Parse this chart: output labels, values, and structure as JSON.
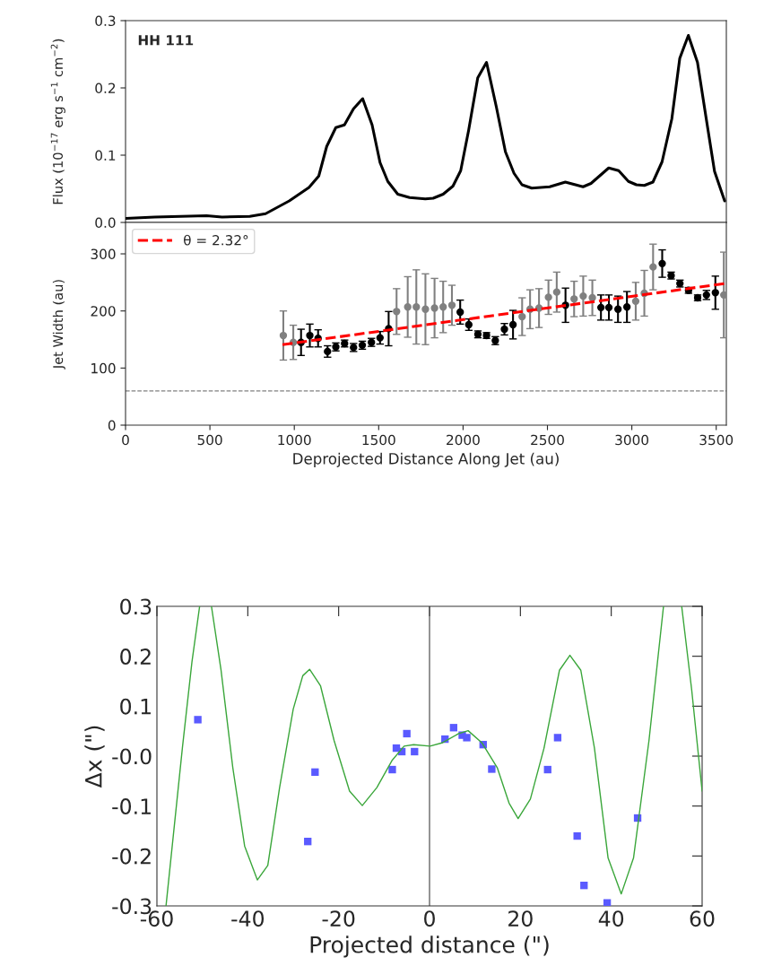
{
  "chart_data": [
    {
      "type": "line",
      "xlim": [
        0,
        3560
      ],
      "ylim": [
        0.0,
        0.3
      ],
      "yticks": [
        {
          "value": 0,
          "label": "0.0"
        },
        0.1,
        0.2,
        0.3
      ],
      "tick_labels": "y",
      "grid": false,
      "legend": false,
      "ylabel": "Flux (10$^{−17}$ erg s$^{−1}$ cm$^{−2}$)",
      "annotations": [
        "HH 111"
      ],
      "series": [
        {
          "color": "#000000",
          "marker": "none",
          "line_style": "solid",
          "x": [
            0,
            173,
            480,
            572,
            736,
            830,
            970,
            1087,
            1145,
            1192,
            1246,
            1297,
            1351,
            1405,
            1461,
            1508,
            1554,
            1613,
            1683,
            1776,
            1823,
            1882,
            1940,
            1986,
            2033,
            2087,
            2139,
            2197,
            2251,
            2302,
            2349,
            2407,
            2513,
            2606,
            2711,
            2758,
            2863,
            2922,
            2980,
            3027,
            3074,
            3125,
            3179,
            3237,
            3284,
            3335,
            3389,
            3441,
            3490,
            3550
          ],
          "values": [
            0.006,
            0.008,
            0.01,
            0.008,
            0.009,
            0.013,
            0.032,
            0.052,
            0.069,
            0.113,
            0.141,
            0.145,
            0.169,
            0.184,
            0.145,
            0.089,
            0.061,
            0.042,
            0.037,
            0.035,
            0.036,
            0.042,
            0.054,
            0.077,
            0.137,
            0.215,
            0.238,
            0.172,
            0.105,
            0.073,
            0.056,
            0.051,
            0.053,
            0.06,
            0.053,
            0.058,
            0.081,
            0.077,
            0.061,
            0.056,
            0.055,
            0.06,
            0.09,
            0.154,
            0.244,
            0.278,
            0.238,
            0.154,
            0.076,
            0.032
          ]
        }
      ]
    },
    {
      "type": "scatter",
      "xlim": [
        0,
        3560
      ],
      "ylim": [
        0,
        355
      ],
      "xticks": [
        0,
        500,
        1000,
        1500,
        2000,
        2500,
        3000,
        3500
      ],
      "yticks": [
        0,
        100,
        200,
        300
      ],
      "grid": false,
      "legend": "top left",
      "xlabel": "Deprojected Distance Along Jet (au)",
      "ylabel": "Jet Width (au)",
      "ref_lines": [
        {
          "axis": "y",
          "value": 60,
          "color": "#808080",
          "line_style": "dashed"
        }
      ],
      "series": [
        {
          "color": "#808080",
          "marker": "circle",
          "x": [
            935,
            994,
            1606,
            1672,
            1723,
            1777,
            1831,
            1882,
            1934,
            2350,
            2397,
            2450,
            2506,
            2555,
            2658,
            2712,
            2766,
            3023,
            3074,
            3126,
            3545
          ],
          "values": [
            157,
            145,
            199,
            207,
            207,
            203,
            205,
            207,
            210,
            190,
            203,
            205,
            224,
            233,
            221,
            226,
            223,
            217,
            231,
            277,
            228
          ],
          "errors": [
            43,
            30,
            40,
            53,
            65,
            62,
            52,
            45,
            35,
            33,
            34,
            34,
            30,
            35,
            31,
            35,
            31,
            33,
            40,
            40,
            75
          ]
        },
        {
          "color": "#000000",
          "marker": "circle",
          "x": [
            1040,
            1092,
            1141,
            1197,
            1246,
            1298,
            1351,
            1403,
            1457,
            1508,
            1559,
            1983,
            2034,
            2088,
            2139,
            2191,
            2245,
            2296,
            2607,
            2817,
            2864,
            2918,
            2971,
            3180,
            3233,
            3285,
            3336,
            3390,
            3442,
            3495
          ],
          "values": [
            145,
            157,
            152,
            129,
            137,
            143,
            136,
            140,
            145,
            153,
            169,
            198,
            176,
            159,
            157,
            148,
            168,
            176,
            210,
            206,
            206,
            203,
            207,
            283,
            262,
            248,
            236,
            223,
            228,
            232
          ],
          "errors": [
            23,
            20,
            15,
            10,
            7,
            6,
            7,
            7,
            7,
            11,
            30,
            21,
            10,
            6,
            5,
            7,
            10,
            25,
            30,
            22,
            22,
            23,
            27,
            24,
            6,
            6,
            5,
            5,
            8,
            29
          ]
        },
        {
          "type": "line",
          "name": "θ = 2.32°",
          "color": "#ff0000",
          "marker": "none",
          "line_style": "dashed",
          "x": [
            930,
            3550
          ],
          "values": [
            141,
            248
          ]
        }
      ]
    },
    {
      "type": "scatter",
      "xlim": [
        -60,
        60
      ],
      "ylim": [
        -0.3,
        0.3
      ],
      "xticks": [
        -60,
        -40,
        -20,
        0,
        20,
        40,
        60
      ],
      "yticks": [
        -0.3,
        -0.2,
        -0.1,
        {
          "value": 0,
          "label": "-0.0"
        },
        0.1,
        0.2,
        0.3
      ],
      "grid": false,
      "legend": false,
      "xlabel": "Projected distance (\")",
      "ylabel": "Δx (\")",
      "ref_lines": [
        {
          "axis": "x",
          "value": 0,
          "color": "#555555",
          "line_style": "solid"
        }
      ],
      "series": [
        {
          "type": "line",
          "color": "#3aa63a",
          "marker": "none",
          "line_style": "solid",
          "x": [
            -58.0,
            -54.4,
            -52.3,
            -50.6,
            null,
            -48.0,
            -45.9,
            -43.3,
            -40.7,
            -37.9,
            -35.6,
            -33.0,
            -30.0,
            -27.9,
            -26.4,
            -24.0,
            -21.0,
            -17.6,
            -14.8,
            -11.6,
            -8.2,
            -5.6,
            -3.5,
            0.1,
            2.9,
            6.4,
            8.5,
            11.5,
            14.9,
            17.5,
            19.5,
            22.2,
            25.2,
            28.6,
            30.9,
            33.3,
            36.3,
            39.3,
            42.2,
            44.9,
            48.3,
            51.5,
            null,
            55.5,
            57.7,
            60.0
          ],
          "values": [
            -0.3,
            0.016,
            0.188,
            0.3,
            null,
            0.3,
            0.173,
            -0.023,
            -0.18,
            -0.248,
            -0.219,
            -0.063,
            0.094,
            0.161,
            0.174,
            0.141,
            0.031,
            -0.07,
            -0.099,
            -0.063,
            -0.008,
            0.02,
            0.023,
            0.02,
            0.027,
            0.045,
            0.051,
            0.027,
            -0.023,
            -0.094,
            -0.125,
            -0.086,
            0.016,
            0.172,
            0.202,
            0.172,
            0.016,
            -0.204,
            -0.276,
            -0.204,
            0.031,
            0.3,
            null,
            0.3,
            0.133,
            -0.07
          ]
        },
        {
          "color": "#5a5aff",
          "marker": "square",
          "x": [
            -51.0,
            -25.2,
            -26.8,
            -8.2,
            -7.3,
            -6.1,
            -5.0,
            -3.3,
            3.4,
            5.3,
            7.2,
            8.2,
            11.8,
            13.7,
            26.0,
            28.2,
            32.5,
            34.0,
            39.1,
            45.8
          ],
          "values": [
            0.073,
            -0.032,
            -0.171,
            -0.027,
            0.016,
            0.009,
            0.045,
            0.009,
            0.034,
            0.057,
            0.042,
            0.037,
            0.023,
            -0.026,
            -0.027,
            0.037,
            -0.16,
            -0.259,
            -0.294,
            -0.124
          ]
        }
      ]
    }
  ]
}
